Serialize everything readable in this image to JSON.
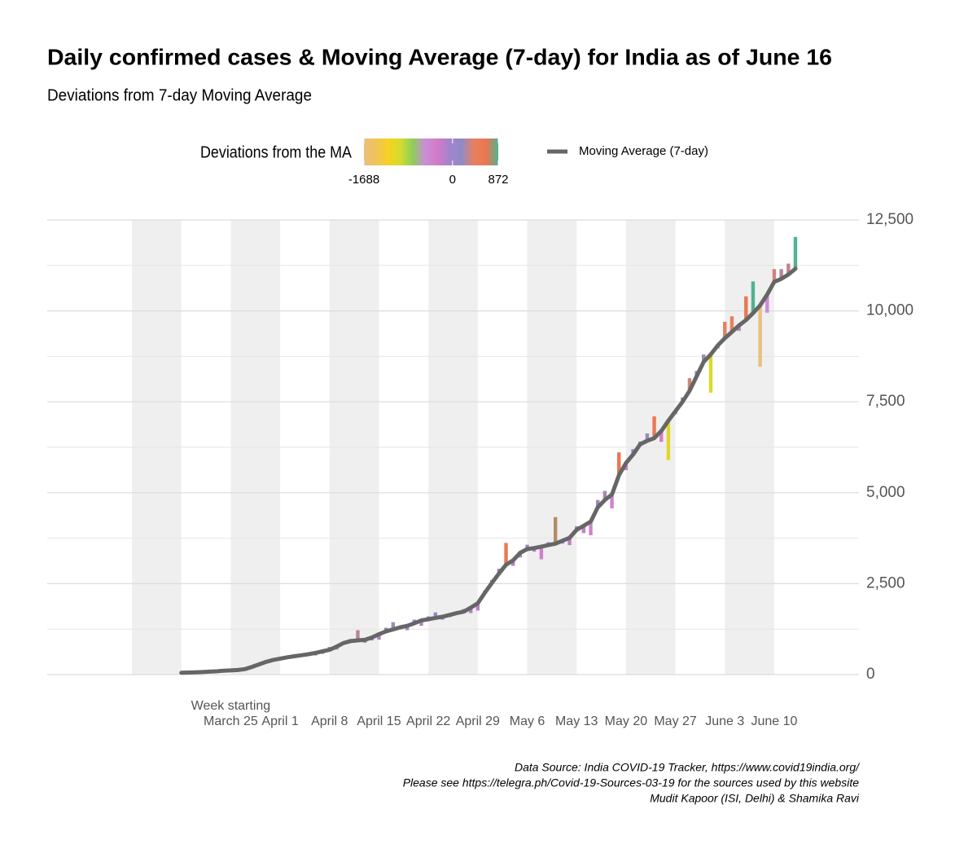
{
  "chart_data": {
    "type": "line",
    "title": "Daily confirmed cases & Moving Average (7-day) for India as of June 16",
    "subtitle": "Deviations from 7-day Moving Average",
    "xlabel": "Week starting",
    "x": [
      "March 18",
      "March 19",
      "March 20",
      "March 21",
      "March 22",
      "March 23",
      "March 24",
      "March 25",
      "March 26",
      "March 27",
      "March 28",
      "March 29",
      "March 30",
      "March 31",
      "April 1",
      "April 2",
      "April 3",
      "April 4",
      "April 5",
      "April 6",
      "April 7",
      "April 8",
      "April 9",
      "April 10",
      "April 11",
      "April 12",
      "April 13",
      "April 14",
      "April 15",
      "April 16",
      "April 17",
      "April 18",
      "April 19",
      "April 20",
      "April 21",
      "April 22",
      "April 23",
      "April 24",
      "April 25",
      "April 26",
      "April 27",
      "April 28",
      "April 29",
      "April 30",
      "May 1",
      "May 2",
      "May 3",
      "May 4",
      "May 5",
      "May 6",
      "May 7",
      "May 8",
      "May 9",
      "May 10",
      "May 11",
      "May 12",
      "May 13",
      "May 14",
      "May 15",
      "May 16",
      "May 17",
      "May 18",
      "May 19",
      "May 20",
      "May 21",
      "May 22",
      "May 23",
      "May 24",
      "May 25",
      "May 26",
      "May 27",
      "May 28",
      "May 29",
      "May 30",
      "May 31",
      "June 1",
      "June 2",
      "June 3",
      "June 4",
      "June 5",
      "June 6",
      "June 7",
      "June 8",
      "June 9",
      "June 10",
      "June 11",
      "June 12",
      "June 13"
    ],
    "series": [
      {
        "name": "Moving Average (7-day)",
        "color": "#666666",
        "values": [
          50,
          55,
          62,
          70,
          80,
          90,
          105,
          115,
          125,
          150,
          210,
          280,
          350,
          400,
          440,
          475,
          505,
          530,
          560,
          595,
          640,
          680,
          770,
          870,
          920,
          940,
          955,
          1020,
          1110,
          1190,
          1240,
          1300,
          1340,
          1410,
          1490,
          1520,
          1560,
          1590,
          1640,
          1690,
          1730,
          1840,
          1960,
          2250,
          2520,
          2780,
          3020,
          3140,
          3350,
          3450,
          3480,
          3520,
          3560,
          3600,
          3680,
          3760,
          3980,
          4090,
          4210,
          4600,
          4800,
          4950,
          5480,
          5820,
          6050,
          6330,
          6430,
          6500,
          6700,
          6980,
          7240,
          7500,
          7800,
          8200,
          8600,
          8800,
          9050,
          9250,
          9420,
          9600,
          9750,
          9940,
          10150,
          10450,
          10800,
          10880,
          11000,
          11160
        ]
      }
    ],
    "deviations": {
      "values": [
        0,
        5,
        -5,
        10,
        -8,
        10,
        -10,
        15,
        -20,
        -15,
        -40,
        -40,
        30,
        40,
        -30,
        20,
        -40,
        30,
        -30,
        -70,
        -70,
        80,
        -80,
        40,
        60,
        280,
        -80,
        -80,
        -150,
        100,
        200,
        -60,
        -120,
        100,
        -150,
        80,
        150,
        -80,
        -60,
        -40,
        70,
        -150,
        -200,
        60,
        80,
        130,
        600,
        -150,
        -130,
        120,
        -100,
        -350,
        80,
        730,
        -80,
        -200,
        100,
        -200,
        -380,
        200,
        250,
        -380,
        630,
        -200,
        150,
        80,
        200,
        600,
        -300,
        -1080,
        -80,
        120,
        350,
        150,
        200,
        -1050,
        -80,
        450,
        430,
        -150,
        650,
        870,
        -1688,
        -500,
        350,
        270,
        300,
        872
      ]
    },
    "colorscale": {
      "title": "Deviations from the MA",
      "ticks": [
        -1688,
        0,
        872
      ],
      "colors": [
        "#e8c07d",
        "#f0c35a",
        "#f7d21f",
        "#d2dc30",
        "#8fcd5a",
        "#c98ed6",
        "#d47ac8",
        "#a384cc",
        "#8f8bc8",
        "#e7805f",
        "#ec7650",
        "#4fb38f"
      ]
    },
    "xlim": [
      "February 28",
      "June 22"
    ],
    "xticks": [
      "March 25",
      "April 1",
      "April 8",
      "April 15",
      "April 22",
      "April 29",
      "May 6",
      "May 13",
      "May 20",
      "May 27",
      "June 3",
      "June 10"
    ],
    "ylim": [
      0,
      12500
    ],
    "yticks": [
      0,
      {
        "value": 2500,
        "label": "2,500"
      },
      {
        "value": 5000,
        "label": "5,000"
      },
      {
        "value": 7500,
        "label": "7,500"
      },
      {
        "value": 10000,
        "label": "10,000"
      },
      {
        "value": 12500,
        "label": "12,500"
      }
    ],
    "grid": true,
    "notes": [
      "Data Source: India COVID-19 Tracker, https://www.covid19india.org/",
      "Please see https://telegra.ph/Covid-19-Sources-03-19 for the sources used by this website",
      "Mudit Kapoor (ISI, Delhi) & Shamika Ravi"
    ]
  }
}
